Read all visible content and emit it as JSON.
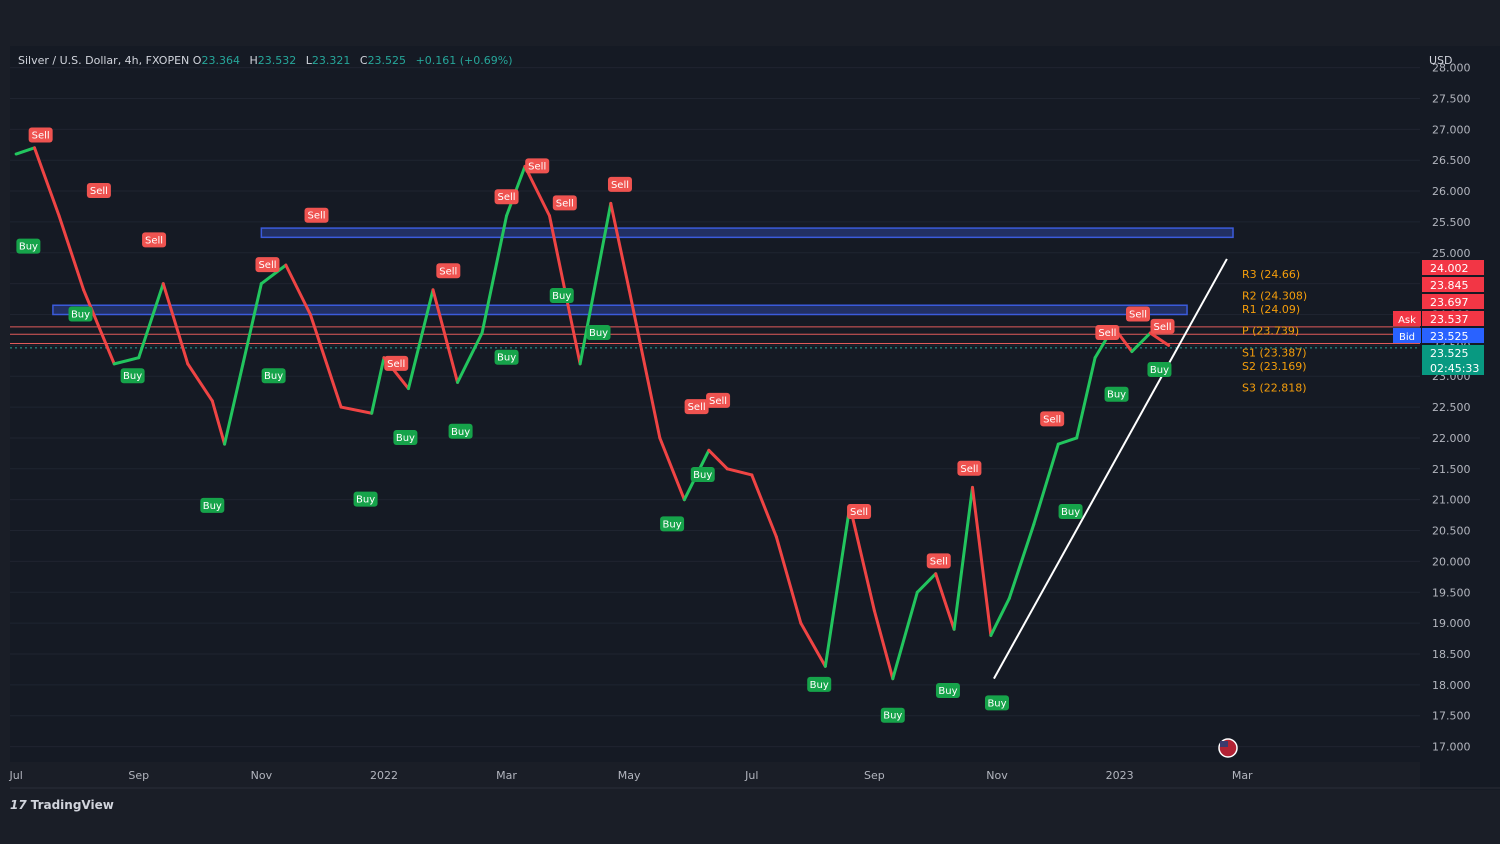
{
  "header": {
    "symbol": "Silver / U.S. Dollar, 4h, FXOPEN",
    "o_label": "O",
    "o": "23.364",
    "h_label": "H",
    "h": "23.532",
    "l_label": "L",
    "l": "23.321",
    "c_label": "C",
    "c": "23.525",
    "change": "+0.161 (+0.69%)"
  },
  "currency": "USD",
  "brand": {
    "mark": "17",
    "name": "TradingView"
  },
  "colors": {
    "up": "#22c55e",
    "down": "#ef4444",
    "accent": "#26a69a",
    "zone": "#3b5bdb",
    "trend": "#ffffff",
    "pivot": "#f59e0b"
  },
  "chart_data": {
    "type": "line",
    "instrument": "Silver / U.S. Dollar",
    "y_ticks": [
      "28.000",
      "27.500",
      "27.000",
      "26.500",
      "26.000",
      "25.500",
      "25.000",
      "24.500",
      "24.000",
      "23.500",
      "23.000",
      "22.500",
      "22.000",
      "21.500",
      "21.000",
      "20.500",
      "20.000",
      "19.500",
      "19.000",
      "18.500",
      "18.000",
      "17.500",
      "17.000"
    ],
    "y_tick_values": [
      28,
      27.5,
      27,
      26.5,
      26,
      25.5,
      25,
      24.5,
      24,
      23.5,
      23,
      22.5,
      22,
      21.5,
      21,
      20.5,
      20,
      19.5,
      19,
      18.5,
      18,
      17.5,
      17
    ],
    "ylim": [
      16.75,
      28.35
    ],
    "x_ticks": [
      {
        "label": "Jul",
        "t": 0
      },
      {
        "label": "Sep",
        "t": 2
      },
      {
        "label": "Nov",
        "t": 4
      },
      {
        "label": "2022",
        "t": 6
      },
      {
        "label": "Mar",
        "t": 8
      },
      {
        "label": "May",
        "t": 10
      },
      {
        "label": "Jul",
        "t": 12
      },
      {
        "label": "Sep",
        "t": 14
      },
      {
        "label": "Nov",
        "t": 16
      },
      {
        "label": "2023",
        "t": 18
      },
      {
        "label": "Mar",
        "t": 20
      }
    ],
    "xlim": [
      -0.1,
      22.9
    ],
    "series": [
      {
        "values": [
          [
            0,
            26.6
          ],
          [
            0.3,
            26.7
          ],
          [
            0.7,
            25.6
          ],
          [
            1.1,
            24.4
          ],
          [
            1.6,
            23.2
          ],
          [
            2,
            23.3
          ],
          [
            2.4,
            24.5
          ],
          [
            2.8,
            23.2
          ],
          [
            3.2,
            22.6
          ],
          [
            3.4,
            21.9
          ],
          [
            3.7,
            23.2
          ],
          [
            4,
            24.5
          ],
          [
            4.4,
            24.8
          ],
          [
            4.8,
            24.0
          ],
          [
            5.3,
            22.5
          ],
          [
            5.8,
            22.4
          ],
          [
            6,
            23.3
          ],
          [
            6.4,
            22.8
          ],
          [
            6.8,
            24.4
          ],
          [
            7.2,
            22.9
          ],
          [
            7.6,
            23.7
          ],
          [
            8,
            25.6
          ],
          [
            8.3,
            26.4
          ],
          [
            8.7,
            25.6
          ],
          [
            9.2,
            23.2
          ],
          [
            9.7,
            25.8
          ],
          [
            10,
            24.4
          ],
          [
            10.5,
            22.0
          ],
          [
            10.9,
            21.0
          ],
          [
            11.3,
            21.8
          ],
          [
            11.6,
            21.5
          ],
          [
            12.0,
            21.4
          ],
          [
            12.4,
            20.4
          ],
          [
            12.8,
            19.0
          ],
          [
            13.2,
            18.3
          ],
          [
            13.6,
            20.9
          ],
          [
            14,
            19.2
          ],
          [
            14.3,
            18.1
          ],
          [
            14.7,
            19.5
          ],
          [
            15.0,
            19.8
          ],
          [
            15.3,
            18.9
          ],
          [
            15.6,
            21.2
          ],
          [
            15.9,
            18.8
          ],
          [
            16.2,
            19.4
          ],
          [
            16.6,
            20.6
          ],
          [
            17,
            21.9
          ],
          [
            17.3,
            22.0
          ],
          [
            17.6,
            23.3
          ],
          [
            17.9,
            23.8
          ],
          [
            18.2,
            23.4
          ],
          [
            18.5,
            23.7
          ],
          [
            18.8,
            23.5
          ]
        ]
      }
    ],
    "signals": [
      {
        "type": "Sell",
        "t": 0.4,
        "y": 26.9
      },
      {
        "type": "Buy",
        "t": 0.2,
        "y": 25.1
      },
      {
        "type": "Sell",
        "t": 1.35,
        "y": 26.0
      },
      {
        "type": "Buy",
        "t": 1.05,
        "y": 24.0
      },
      {
        "type": "Sell",
        "t": 2.25,
        "y": 25.2
      },
      {
        "type": "Buy",
        "t": 1.9,
        "y": 23.0
      },
      {
        "type": "Buy",
        "t": 3.2,
        "y": 20.9
      },
      {
        "type": "Sell",
        "t": 4.1,
        "y": 24.8
      },
      {
        "type": "Buy",
        "t": 4.2,
        "y": 23.0
      },
      {
        "type": "Sell",
        "t": 4.9,
        "y": 25.6
      },
      {
        "type": "Buy",
        "t": 5.7,
        "y": 21.0
      },
      {
        "type": "Sell",
        "t": 6.2,
        "y": 23.2
      },
      {
        "type": "Buy",
        "t": 6.35,
        "y": 22.0
      },
      {
        "type": "Sell",
        "t": 7.05,
        "y": 24.7
      },
      {
        "type": "Buy",
        "t": 7.25,
        "y": 22.1
      },
      {
        "type": "Sell",
        "t": 8.0,
        "y": 25.9
      },
      {
        "type": "Buy",
        "t": 8.0,
        "y": 23.3
      },
      {
        "type": "Sell",
        "t": 8.5,
        "y": 26.4
      },
      {
        "type": "Buy",
        "t": 8.9,
        "y": 24.3
      },
      {
        "type": "Sell",
        "t": 8.95,
        "y": 25.8
      },
      {
        "type": "Buy",
        "t": 9.5,
        "y": 23.7
      },
      {
        "type": "Sell",
        "t": 9.85,
        "y": 26.1
      },
      {
        "type": "Sell",
        "t": 11.1,
        "y": 22.5
      },
      {
        "type": "Sell",
        "t": 11.45,
        "y": 22.6
      },
      {
        "type": "Buy",
        "t": 11.2,
        "y": 21.4
      },
      {
        "type": "Buy",
        "t": 10.7,
        "y": 20.6
      },
      {
        "type": "Buy",
        "t": 13.1,
        "y": 18.0
      },
      {
        "type": "Sell",
        "t": 13.75,
        "y": 20.8
      },
      {
        "type": "Buy",
        "t": 14.3,
        "y": 17.5
      },
      {
        "type": "Sell",
        "t": 15.05,
        "y": 20.0
      },
      {
        "type": "Buy",
        "t": 15.2,
        "y": 17.9
      },
      {
        "type": "Sell",
        "t": 15.55,
        "y": 21.5
      },
      {
        "type": "Buy",
        "t": 16.0,
        "y": 17.7
      },
      {
        "type": "Sell",
        "t": 16.9,
        "y": 22.3
      },
      {
        "type": "Buy",
        "t": 17.2,
        "y": 20.8
      },
      {
        "type": "Sell",
        "t": 17.8,
        "y": 23.7
      },
      {
        "type": "Buy",
        "t": 17.95,
        "y": 22.7
      },
      {
        "type": "Sell",
        "t": 18.3,
        "y": 24.0
      },
      {
        "type": "Sell",
        "t": 18.7,
        "y": 23.8
      },
      {
        "type": "Buy",
        "t": 18.65,
        "y": 23.1
      }
    ],
    "zones": [
      {
        "t_start": 4.0,
        "t_end": 19.85,
        "y_low": 25.25,
        "y_high": 25.4
      },
      {
        "t_start": 0.6,
        "t_end": 19.1,
        "y_low": 24.0,
        "y_high": 24.15
      }
    ],
    "horizontal_lines": [
      23.8,
      23.68,
      23.53
    ],
    "trendline": [
      [
        15.95,
        18.1
      ],
      [
        19.75,
        24.9
      ]
    ],
    "pivots": [
      {
        "label": "R3 (24.66)",
        "y": 24.66
      },
      {
        "label": "R2 (24.308)",
        "y": 24.308
      },
      {
        "label": "R1 (24.09)",
        "y": 24.09
      },
      {
        "label": "P (23.739)",
        "y": 23.739
      },
      {
        "label": "S1 (23.387)",
        "y": 23.387
      },
      {
        "label": "S2 (23.169)",
        "y": 23.169
      },
      {
        "label": "S3 (22.818)",
        "y": 22.818
      }
    ],
    "price_tags": [
      {
        "label": "",
        "value": "24.002",
        "color": "#f23645"
      },
      {
        "label": "",
        "value": "23.845",
        "color": "#f23645"
      },
      {
        "label": "",
        "value": "23.697",
        "color": "#f23645"
      },
      {
        "label": "Ask",
        "value": "23.537",
        "color": "#f23645"
      },
      {
        "label": "Bid",
        "value": "23.525",
        "color": "#2962ff"
      },
      {
        "label": "",
        "value": "23.525",
        "color": "#089981"
      },
      {
        "label": "",
        "value": "02:45:33",
        "color": "#089981"
      }
    ]
  }
}
